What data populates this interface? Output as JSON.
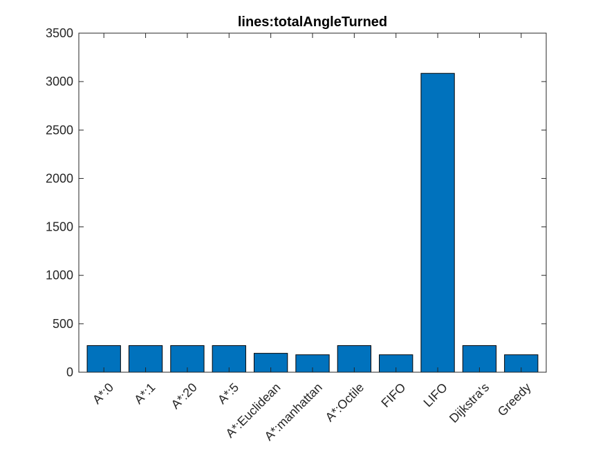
{
  "chart_data": {
    "type": "bar",
    "title": "lines:totalAngleTurned",
    "xlabel": "",
    "ylabel": "",
    "categories": [
      "A*:0",
      "A*:1",
      "A*:20",
      "A*:5",
      "A*:Euclidean",
      "A*:manhattan",
      "A*:Octile",
      "FIFO",
      "LIFO",
      "Dijkstra's",
      "Greedy"
    ],
    "values": [
      275,
      275,
      275,
      275,
      195,
      180,
      275,
      180,
      3085,
      275,
      180
    ],
    "ylim": [
      0,
      3500
    ],
    "yticks": [
      0,
      500,
      1000,
      1500,
      2000,
      2500,
      3000,
      3500
    ],
    "ytick_labels": [
      "0",
      "500",
      "1000",
      "1500",
      "2000",
      "2500",
      "3000",
      "3500"
    ],
    "grid": false,
    "bar_color": "#0072BD",
    "bar_edge_color": "#000000",
    "axis_color": "#262626"
  }
}
